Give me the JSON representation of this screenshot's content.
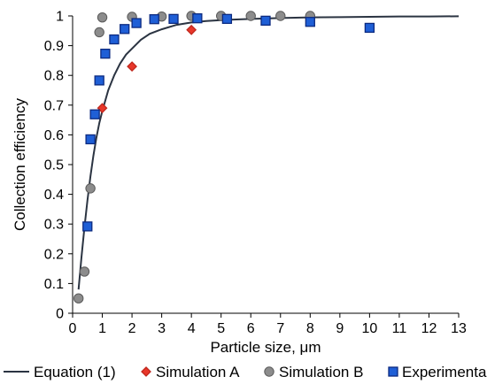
{
  "chart_data": {
    "type": "scatter",
    "xlabel": "Particle size, μm",
    "ylabel": "Collection efficiency",
    "xlim": [
      0,
      13
    ],
    "ylim": [
      0,
      1
    ],
    "xticks": [
      "0",
      "1",
      "2",
      "3",
      "4",
      "5",
      "6",
      "7",
      "8",
      "9",
      "10",
      "11",
      "12",
      "13"
    ],
    "yticks": [
      "0",
      "0.1",
      "0.2",
      "0.3",
      "0.4",
      "0.5",
      "0.6",
      "0.7",
      "0.8",
      "0.9",
      "1"
    ],
    "grid": false,
    "legend_position": "bottom",
    "series": [
      {
        "name": "Equation (1)",
        "kind": "line",
        "color": "#2b3442",
        "x": [
          0.2,
          0.3,
          0.4,
          0.5,
          0.6,
          0.7,
          0.8,
          0.9,
          1.0,
          1.2,
          1.4,
          1.6,
          1.8,
          2.0,
          2.3,
          2.6,
          3.0,
          3.5,
          4.0,
          4.5,
          5,
          6,
          7,
          8,
          9,
          10,
          11,
          12,
          13
        ],
        "y": [
          0.08,
          0.19,
          0.29,
          0.38,
          0.46,
          0.53,
          0.59,
          0.64,
          0.68,
          0.75,
          0.8,
          0.84,
          0.87,
          0.89,
          0.92,
          0.94,
          0.955,
          0.97,
          0.978,
          0.983,
          0.986,
          0.99,
          0.993,
          0.995,
          0.996,
          0.997,
          0.998,
          0.998,
          0.999
        ]
      },
      {
        "name": "Simulation A",
        "kind": "diamond",
        "color": "#e8372a",
        "stroke": "#c0281d",
        "x": [
          1.0,
          2.0,
          4.0
        ],
        "y": [
          0.69,
          0.83,
          0.953
        ]
      },
      {
        "name": "Simulation B",
        "kind": "circle",
        "color": "#8c8c8c",
        "stroke": "#5a5a5a",
        "x": [
          0.2,
          0.4,
          0.6,
          0.9,
          1.0,
          2.0,
          3.0,
          4.0,
          5.0,
          6.0,
          7.0,
          8.0
        ],
        "y": [
          0.05,
          0.14,
          0.42,
          0.945,
          0.995,
          0.997,
          0.998,
          1.0,
          1.0,
          1.0,
          1.0,
          1.0
        ]
      },
      {
        "name": "Experimental",
        "kind": "square",
        "color": "#1f5fd6",
        "stroke": "#0c2a80",
        "x": [
          0.5,
          0.6,
          0.75,
          0.9,
          1.1,
          1.4,
          1.75,
          2.15,
          2.75,
          3.4,
          4.2,
          5.2,
          6.5,
          8.0,
          10.0
        ],
        "y": [
          0.292,
          0.585,
          0.669,
          0.783,
          0.873,
          0.921,
          0.956,
          0.976,
          0.989,
          0.99,
          0.992,
          0.99,
          0.984,
          0.98,
          0.96
        ]
      }
    ]
  }
}
